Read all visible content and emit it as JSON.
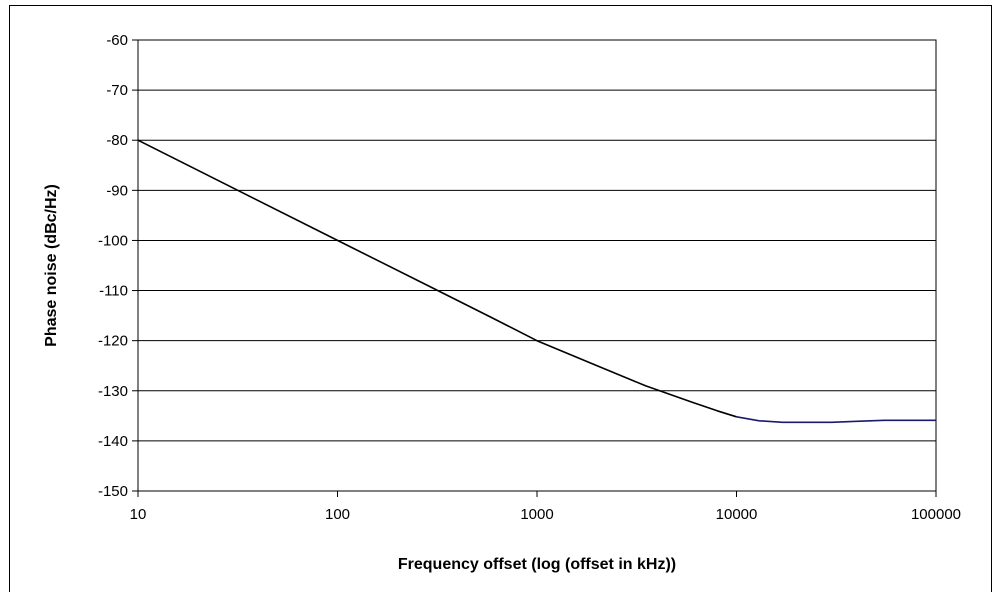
{
  "chart_data": {
    "type": "line",
    "title": "",
    "xlabel": "Frequency offset (log (offset in kHz))",
    "ylabel": "Phase noise (dBc/Hz)",
    "x_scale": "log",
    "xlim": [
      10,
      100000
    ],
    "ylim": [
      -150,
      -60
    ],
    "grid": "horizontal",
    "legend": "none",
    "x_ticks": [
      10,
      100,
      1000,
      10000,
      100000
    ],
    "x_tick_labels": [
      "10",
      "100",
      "1000",
      "10000",
      "100000"
    ],
    "y_ticks": [
      -60,
      -70,
      -80,
      -90,
      -100,
      -110,
      -120,
      -130,
      -140,
      -150
    ],
    "y_tick_labels": [
      "-60",
      "-70",
      "-80",
      "-90",
      "-100",
      "-110",
      "-120",
      "-130",
      "-140",
      "-150"
    ],
    "series": [
      {
        "color": "#000000",
        "x": [
          10,
          100,
          300,
          600,
          1000,
          2000,
          3500,
          6000,
          8000,
          10000
        ],
        "y": [
          -80,
          -100,
          -109.5,
          -115.5,
          -120,
          -125,
          -129,
          -132.3,
          -134,
          -135.2
        ]
      },
      {
        "color": "#1a1a6e",
        "x": [
          10000,
          13000,
          17000,
          20000,
          30000,
          40000,
          55000,
          70000,
          100000
        ],
        "y": [
          -135.2,
          -136,
          -136.3,
          -136.3,
          -136.3,
          -136.1,
          -135.9,
          -135.9,
          -135.9
        ]
      }
    ]
  }
}
